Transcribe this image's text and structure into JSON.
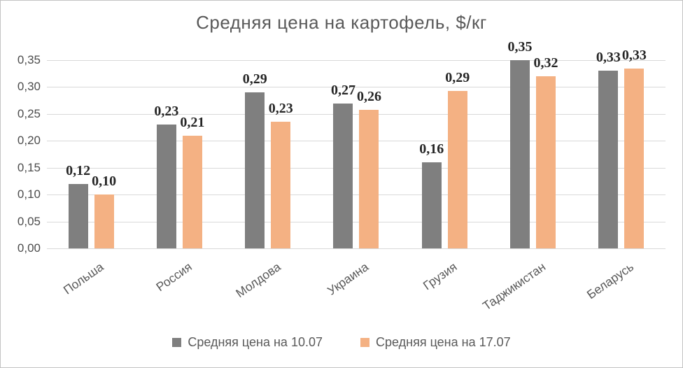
{
  "window": {
    "background": "#FFFFFF",
    "border_color": "#C3C3C3"
  },
  "chart_data": {
    "type": "bar",
    "title": "Средняя цена на картофель, $/кг",
    "categories": [
      "Польша",
      "Россия",
      "Молдова",
      "Украина",
      "Грузия",
      "Таджикистан",
      "Беларусь"
    ],
    "series": [
      {
        "name": "Средняя цена на 10.07",
        "color": "#7F7F7F",
        "values": [
          0.12,
          0.23,
          0.29,
          0.27,
          0.16,
          0.35,
          0.33
        ],
        "labels": [
          "0,12",
          "0,23",
          "0,29",
          "0,27",
          "0,16",
          "0,35",
          "0,33"
        ]
      },
      {
        "name": "Средняя цена на 17.07",
        "color": "#F4B183",
        "values": [
          0.1,
          0.21,
          0.235,
          0.258,
          0.293,
          0.32,
          0.334
        ],
        "labels": [
          "0,10",
          "0,21",
          "0,23",
          "0,26",
          "0,29",
          "0,32",
          "0,33"
        ]
      }
    ],
    "y_axis": {
      "ticks": [
        "0,00",
        "0,05",
        "0,10",
        "0,15",
        "0,20",
        "0,25",
        "0,30",
        "0,35"
      ],
      "tick_values": [
        0,
        0.05,
        0.1,
        0.15,
        0.2,
        0.25,
        0.3,
        0.35
      ],
      "min": 0,
      "max": 0.35
    },
    "grid": true,
    "legend_position": "bottom",
    "styles": {
      "gridline_color": "#D9D9D9",
      "title_color": "#595959",
      "axis_label_color": "#595959",
      "data_label_color": "#262626",
      "x_label_rotation_deg": -35
    }
  }
}
